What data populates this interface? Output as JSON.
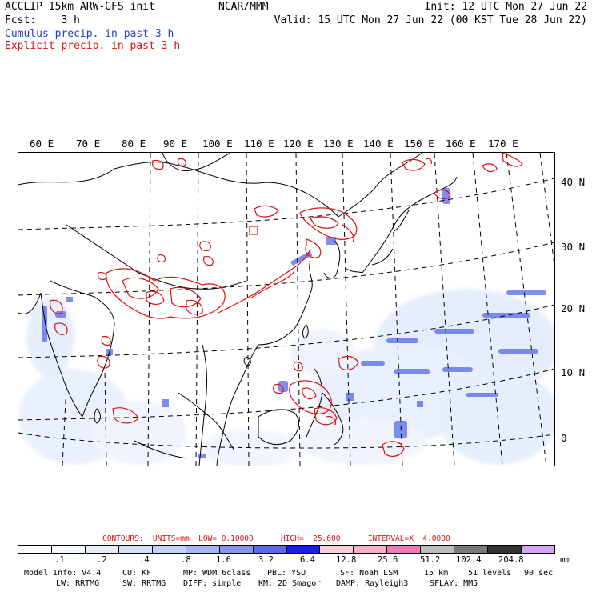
{
  "header": {
    "left_line1": "ACCLIP 15km ARW-GFS init",
    "left_line2": "Fcst:    3 h",
    "center": "NCAR/MMM",
    "right_line1": "Init: 12 UTC Mon 27 Jun 22",
    "right_line2": "Valid: 15 UTC Mon 27 Jun 22 (00 KST Tue 28 Jun 22)",
    "legend_cumulus": "Cumulus precip. in past 3 h",
    "legend_explicit": "Explicit precip. in past 3 h"
  },
  "map": {
    "lon_labels": [
      "60 E",
      "70 E",
      "80 E",
      "90 E",
      "100 E",
      "110 E",
      "120 E",
      "130 E",
      "140 E",
      "150 E",
      "160 E",
      "170 E"
    ],
    "lat_labels": [
      "40 N",
      "30 N",
      "20 N",
      "10 N",
      "0"
    ],
    "colors": {
      "explicit_contour": "#e01010",
      "cumulus_fill": "#3d55e8",
      "cumulus_light": "#c9d8f7",
      "coast": "#000000"
    }
  },
  "contours_text": "CONTOURS:  UNITS=mm  LOW= 0.10000      HIGH=  25.600      INTERVAL=X  4.0000",
  "scale": {
    "colors": [
      "#ffffff",
      "#f4f7fc",
      "#e6eefb",
      "#d4e2f8",
      "#c2d3f7",
      "#a8b4f4",
      "#8892f0",
      "#5f68ec",
      "#1b1bf2",
      "#f6d2d6",
      "#f6b0c8",
      "#ef78b6",
      "#bcbcbc",
      "#7a7a7a",
      "#333333",
      "#d6a6f6"
    ],
    "ticks": [
      ".1",
      ".2",
      ".4",
      ".8",
      "1.6",
      "3.2",
      "6.4",
      "12.8",
      "25.6",
      "51.2",
      "102.4",
      "204.8"
    ],
    "unit": "mm"
  },
  "model_info": {
    "line1_items": [
      "Model Info: V4.4",
      "CU: KF",
      "MP: WDM 6class",
      "PBL: YSU",
      "SF: Noah LSM",
      "15 km",
      "51 levels",
      "90 sec"
    ],
    "line2_items": [
      "LW: RRTMG",
      "SW: RRTMG",
      "DIFF: simple",
      "KM: 2D Smagor",
      "DAMP: Rayleigh3",
      "SFLAY: MM5"
    ]
  }
}
